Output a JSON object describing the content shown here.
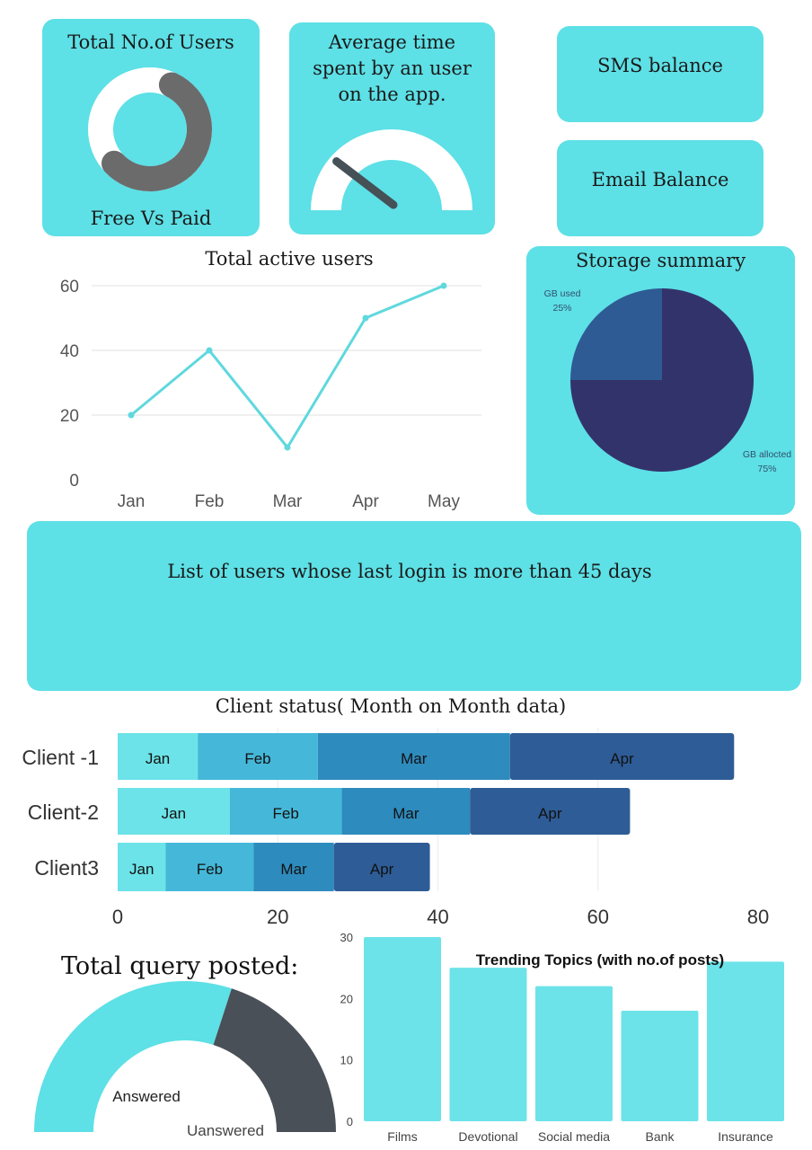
{
  "cards": {
    "users": {
      "title": "Total No.of Users",
      "caption": "Free Vs Paid"
    },
    "avg_time": {
      "title": "Average time spent by an user on the app.",
      "gauge_fraction": 0.18
    },
    "sms": {
      "title": "SMS balance"
    },
    "email": {
      "title": "Email Balance"
    },
    "inactive": {
      "title": "List of  users whose last login is more than 45 days"
    },
    "query": {
      "title": "Total query posted:"
    }
  },
  "colors": {
    "card": "#5de0e6",
    "line": "#5fd8de",
    "gauge_needle": "#455057",
    "donut_gray": "#6b6b6b",
    "pie_used": "#2e5b94",
    "pie_allocated": "#33336b",
    "bar_jan": "#6ce3e8",
    "bar_feb": "#45b8d9",
    "bar_mar": "#2e8bbd",
    "bar_apr": "#2e5c96",
    "query_dark": "#4a5058",
    "trend_bar": "#6ce3e8"
  },
  "chart_data": [
    {
      "id": "donut",
      "type": "pie",
      "title": "Total No.of Users",
      "caption": "Free Vs Paid",
      "values": [
        0.6,
        0.4
      ]
    },
    {
      "id": "active",
      "type": "line",
      "title": "Total active users",
      "categories": [
        "Jan",
        "Feb",
        "Mar",
        "Apr",
        "May"
      ],
      "values": [
        20,
        40,
        10,
        50,
        60
      ],
      "ylim": [
        0,
        60
      ],
      "yticks": [
        0,
        20,
        40,
        60
      ],
      "grid": true
    },
    {
      "id": "storage",
      "type": "pie",
      "title": "Storage summary",
      "slices": [
        {
          "label": "GB used",
          "pct_label": "25%",
          "value": 25
        },
        {
          "label": "GB allocted",
          "pct_label": "75%",
          "value": 75
        }
      ]
    },
    {
      "id": "client",
      "type": "bar",
      "orientation": "horizontal",
      "stacked": true,
      "title": "Client status( Month on Month data)",
      "categories": [
        "Client -1",
        "Client-2",
        "Client3"
      ],
      "series": [
        {
          "name": "Jan",
          "values": [
            10,
            14,
            6
          ]
        },
        {
          "name": "Feb",
          "values": [
            15,
            14,
            11
          ]
        },
        {
          "name": "Mar",
          "values": [
            24,
            16,
            10
          ]
        },
        {
          "name": "Apr",
          "values": [
            28,
            20,
            12
          ]
        }
      ],
      "xlim": [
        0,
        80
      ],
      "xticks": [
        0,
        20,
        40,
        60,
        80
      ]
    },
    {
      "id": "query",
      "type": "pie",
      "title": "Total query posted:",
      "slices": [
        {
          "label": "Answered",
          "value": 60
        },
        {
          "label": "Uanswered",
          "value": 40
        }
      ]
    },
    {
      "id": "trending",
      "type": "bar",
      "title": "Trending Topics (with no.of posts)",
      "categories": [
        "Films",
        "Devotional",
        "Social media",
        "Bank",
        "Insurance"
      ],
      "values": [
        30,
        25,
        22,
        18,
        26
      ],
      "ylim": [
        0,
        30
      ],
      "yticks": [
        0,
        10,
        20,
        30
      ]
    }
  ]
}
